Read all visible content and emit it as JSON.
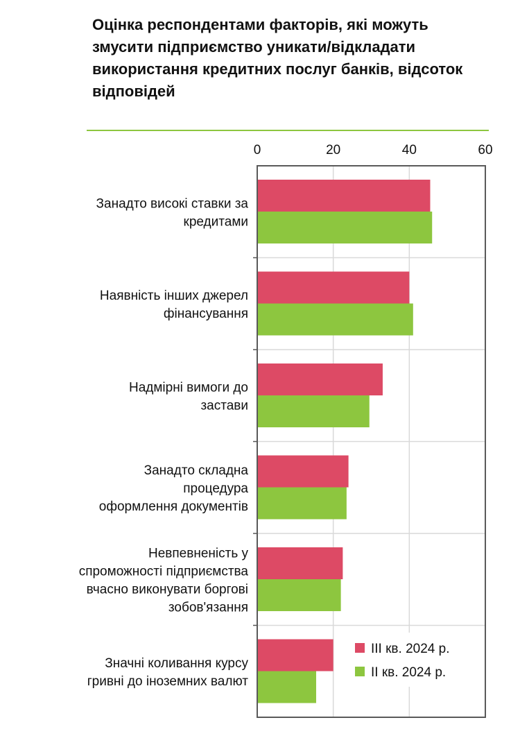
{
  "chart_data": {
    "type": "bar",
    "orientation": "horizontal",
    "title": "Оцінка респондентами факторів, які можуть змусити підприємство уникати/відкладати використання кредитних послуг банків, відсоток відповідей",
    "xlabel": "",
    "ylabel": "",
    "xlim": [
      0,
      60
    ],
    "ticks": [
      "0",
      "20",
      "40",
      "60"
    ],
    "tick_values": [
      0,
      20,
      40,
      60
    ],
    "axis_position": "top",
    "grid": true,
    "legend_position": "bottom-right",
    "categories": [
      [
        "Занадто високі ставки за",
        "кредитами"
      ],
      [
        "Наявність інших джерел",
        "фінансування"
      ],
      [
        "Надмірні вимоги до",
        "застави"
      ],
      [
        "Занадто складна",
        "процедура",
        "оформлення документів"
      ],
      [
        "Невпевненість у",
        "спроможності підприємства",
        "вчасно виконувати боргові",
        "зобов'язання"
      ],
      [
        "Значні коливання курсу",
        "гривні до іноземних валют"
      ]
    ],
    "series": [
      {
        "name": "III кв. 2024 р.",
        "color": "#dd4a65",
        "values": [
          45.5,
          40.0,
          33.0,
          24.0,
          22.5,
          20.0
        ]
      },
      {
        "name": "II кв. 2024 р.",
        "color": "#8dc63f",
        "values": [
          46.0,
          41.0,
          29.5,
          23.5,
          22.0,
          15.5
        ]
      }
    ]
  }
}
